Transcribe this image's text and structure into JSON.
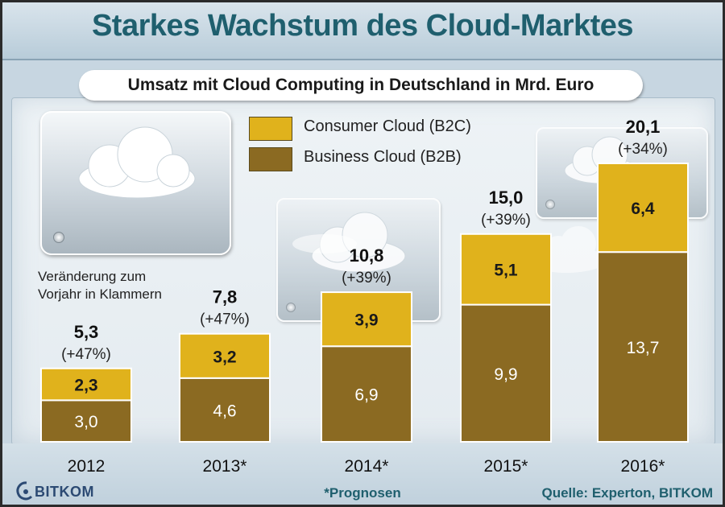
{
  "title": "Starkes Wachstum des Cloud-Marktes",
  "subtitle": "Umsatz mit Cloud Computing in Deutschland in Mrd. Euro",
  "note_lines": [
    "Veränderung zum",
    "Vorjahr in Klammern"
  ],
  "footnote": "*Prognosen",
  "source": "Quelle: Experton, BITKOM",
  "logo_text": "BITKOM",
  "colors": {
    "consumer": "#e0b21c",
    "business": "#8b6a22",
    "title": "#1f5f6e"
  },
  "chart_data": {
    "type": "bar",
    "stacked": true,
    "title": "Umsatz mit Cloud Computing in Deutschland in Mrd. Euro",
    "categories": [
      "2012",
      "2013*",
      "2014*",
      "2015*",
      "2016*"
    ],
    "series": [
      {
        "name": "Business Cloud (B2B)",
        "values": [
          3.0,
          4.6,
          6.9,
          9.9,
          13.7
        ],
        "labels": [
          "3,0",
          "4,6",
          "6,9",
          "9,9",
          "13,7"
        ]
      },
      {
        "name": "Consumer Cloud (B2C)",
        "values": [
          2.3,
          3.2,
          3.9,
          5.1,
          6.4
        ],
        "labels": [
          "2,3",
          "3,2",
          "3,9",
          "5,1",
          "6,4"
        ]
      }
    ],
    "totals": [
      5.3,
      7.8,
      10.8,
      15.0,
      20.1
    ],
    "total_labels": [
      "5,3",
      "7,8",
      "10,8",
      "15,0",
      "20,1"
    ],
    "change_labels": [
      "(+47%)",
      "(+47%)",
      "(+39%)",
      "(+39%)",
      "(+34%)"
    ],
    "legend": [
      {
        "label": "Consumer Cloud (B2C)",
        "color": "#e0b21c"
      },
      {
        "label": "Business Cloud (B2B)",
        "color": "#8b6a22"
      }
    ],
    "ylim": [
      0,
      20.1
    ],
    "legend_position": "top-center",
    "grid": false
  }
}
